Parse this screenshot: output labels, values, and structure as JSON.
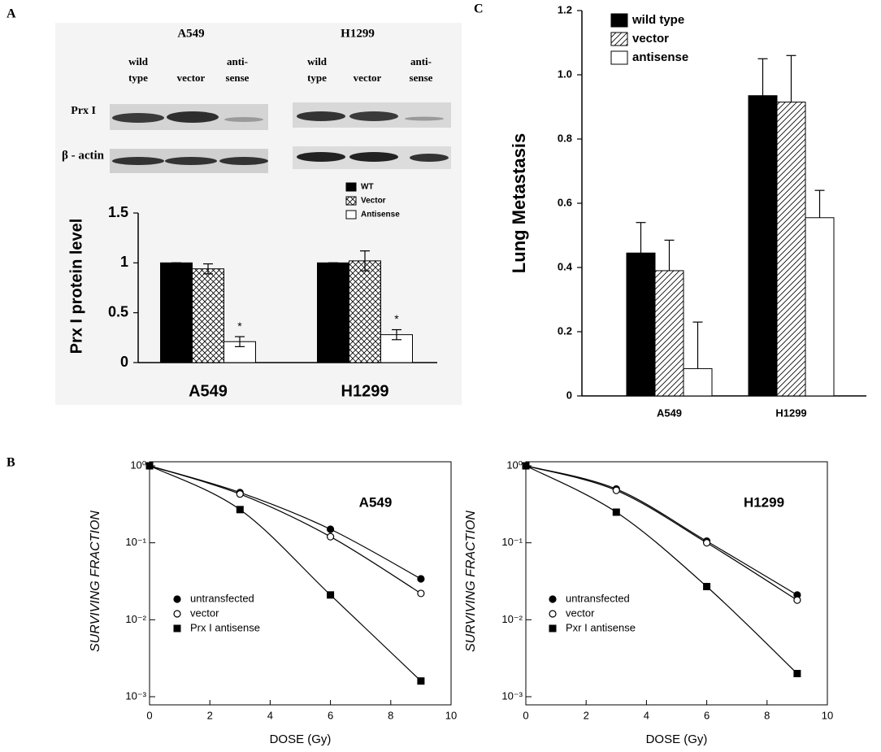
{
  "panel_labels": [
    "A",
    "B",
    "C"
  ],
  "blot": {
    "cells": [
      {
        "name": "A549",
        "lanes": [
          [
            "wild",
            "type"
          ],
          [
            "vector"
          ],
          [
            "anti-",
            "sense"
          ]
        ]
      },
      {
        "name": "H1299",
        "lanes": [
          [
            "wild",
            "type"
          ],
          [
            "vector"
          ],
          [
            "anti-",
            "sense"
          ]
        ]
      }
    ],
    "proteins": [
      "Prx I",
      "β - actin"
    ]
  },
  "chart_data": [
    {
      "type": "bar",
      "ylabel": "Prx I protein level",
      "categories": [
        "A549",
        "H1299"
      ],
      "ylim": [
        0,
        1.5
      ],
      "yticks": [
        0,
        0.5,
        1,
        1.5
      ],
      "annotations": [
        "*",
        "*"
      ],
      "series": [
        {
          "name": "WT",
          "color": "#000000",
          "pattern": "solid",
          "values": [
            1,
            1
          ],
          "errors": [
            0,
            0
          ]
        },
        {
          "name": "Vector",
          "color": "#ffffff",
          "pattern": "crosshatch",
          "values": [
            0.94,
            1.02
          ],
          "errors": [
            0.05,
            0.1
          ]
        },
        {
          "name": "Antisense",
          "color": "#ffffff",
          "pattern": "solid",
          "values": [
            0.21,
            0.28
          ],
          "errors": [
            0.05,
            0.05
          ]
        }
      ]
    },
    {
      "type": "bar",
      "ylabel": "Lung Metastasis",
      "categories": [
        "A549",
        "H1299"
      ],
      "ylim": [
        0,
        1.2
      ],
      "yticks": [
        0,
        0.2,
        0.4,
        0.6,
        0.8,
        {
          "value": 1,
          "label": "1.0"
        },
        1.2
      ],
      "series": [
        {
          "name": "wild type",
          "color": "#000000",
          "pattern": "solid",
          "values": [
            0.445,
            0.935
          ],
          "errors": [
            0.095,
            0.115
          ]
        },
        {
          "name": "vector",
          "color": "#ffffff",
          "pattern": "diagonal",
          "values": [
            0.39,
            0.915
          ],
          "errors": [
            0.095,
            0.145
          ]
        },
        {
          "name": "antisense",
          "color": "#ffffff",
          "pattern": "solid",
          "values": [
            0.085,
            0.555
          ],
          "errors": [
            0.145,
            0.085
          ]
        }
      ]
    },
    {
      "type": "scatter",
      "title": "A549",
      "xlabel": "DOSE (Gy)",
      "ylabel": "SURVIVING FRACTION",
      "log_y": true,
      "xlim": [
        0,
        10
      ],
      "xticks": [
        0,
        2,
        4,
        6,
        8,
        10
      ],
      "ylim": [
        0.001,
        1
      ],
      "yticks": [
        {
          "value": 0.001,
          "label": "10⁻³"
        },
        {
          "value": 0.01,
          "label": "10⁻²"
        },
        {
          "value": 0.1,
          "label": "10⁻¹"
        },
        {
          "value": 1,
          "label": "10⁰"
        }
      ],
      "series": [
        {
          "name": "untransfected",
          "marker": "circle-filled",
          "x": [
            0,
            3,
            6,
            9
          ],
          "values": [
            1,
            0.45,
            0.15,
            0.034
          ]
        },
        {
          "name": "vector",
          "marker": "circle-open",
          "x": [
            0,
            3,
            6,
            9
          ],
          "values": [
            1,
            0.43,
            0.12,
            0.022
          ]
        },
        {
          "name": "Prx I antisense",
          "marker": "square",
          "x": [
            0,
            3,
            6,
            9
          ],
          "values": [
            1,
            0.27,
            0.021,
            0.0016
          ]
        }
      ]
    },
    {
      "type": "scatter",
      "title": "H1299",
      "xlabel": "DOSE (Gy)",
      "ylabel": "SURVIVING FRACTION",
      "log_y": true,
      "xlim": [
        0,
        10
      ],
      "xticks": [
        0,
        2,
        4,
        6,
        8,
        10
      ],
      "ylim": [
        0.001,
        1
      ],
      "yticks": [
        {
          "value": 0.001,
          "label": "10⁻³"
        },
        {
          "value": 0.01,
          "label": "10⁻²"
        },
        {
          "value": 0.1,
          "label": "10⁻¹"
        },
        {
          "value": 1,
          "label": "10⁰"
        }
      ],
      "series": [
        {
          "name": "untransfected",
          "marker": "circle-filled",
          "x": [
            0,
            3,
            6,
            9
          ],
          "values": [
            1,
            0.5,
            0.105,
            0.021
          ]
        },
        {
          "name": "vector",
          "marker": "circle-open",
          "x": [
            0,
            3,
            6,
            9
          ],
          "values": [
            1,
            0.48,
            0.1,
            0.018
          ]
        },
        {
          "name": "Pxr I antisense",
          "marker": "square",
          "x": [
            0,
            3,
            6,
            9
          ],
          "values": [
            1,
            0.25,
            0.027,
            0.002
          ]
        }
      ]
    }
  ]
}
